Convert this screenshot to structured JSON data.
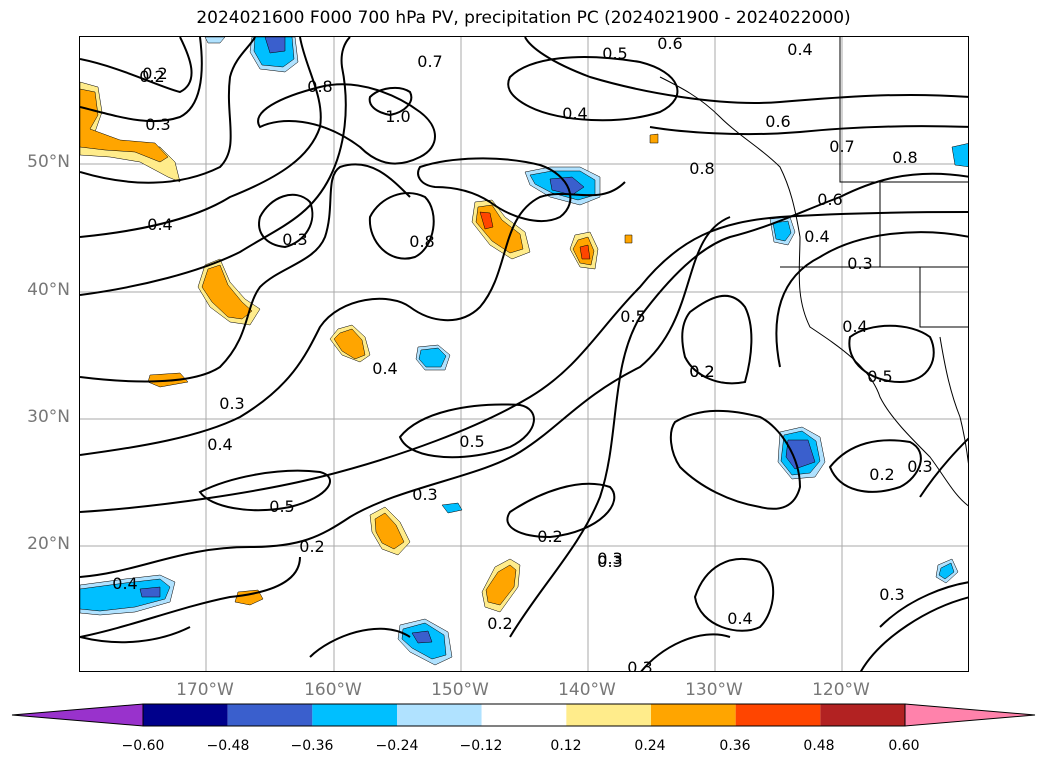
{
  "title": "2024021600 F000 700 hPa PV, precipitation PC (2024021900 - 2024022000)",
  "lat_labels": [
    "50°N",
    "40°N",
    "30°N",
    "20°N"
  ],
  "lon_labels": [
    "170°W",
    "160°W",
    "150°W",
    "140°W",
    "130°W",
    "120°W"
  ],
  "contour_labels": [
    "0.2",
    "0.3",
    "0.4",
    "0.3",
    "0.4",
    "0.3",
    "0.2",
    "0.4",
    "0.5",
    "0.2",
    "0.3",
    "0.4",
    "0.3",
    "0.2",
    "0.4",
    "0.3",
    "0.5",
    "0.2",
    "0.5",
    "0.4",
    "0.2",
    "0.8",
    "1.0",
    "0.8",
    "0.7",
    "0.5",
    "0.6",
    "0.4",
    "0.6",
    "0.7",
    "0.8",
    "0.8",
    "0.6",
    "0.4",
    "0.3",
    "0.4",
    "0.5",
    "0.2",
    "0.3",
    "0.3",
    "0.2",
    "0.3"
  ],
  "colorbar": {
    "ticks": [
      "−0.60",
      "−0.48",
      "−0.36",
      "−0.24",
      "−0.12",
      "0.12",
      "0.24",
      "0.36",
      "0.48",
      "0.60"
    ],
    "colors": [
      "#9932cc",
      "#00008b",
      "#3a5fcd",
      "#00bfff",
      "#b0e2ff",
      "#ffffff",
      "#ffec8b",
      "#ffa500",
      "#ff4500",
      "#b22222",
      "#ff82ab"
    ]
  },
  "fill_colors": {
    "orange": "#ffa500",
    "light_orange": "#ffec8b",
    "red": "#ff4500",
    "blue": "#3a5fcd",
    "cyan": "#00bfff",
    "light_blue": "#b0e2ff"
  }
}
